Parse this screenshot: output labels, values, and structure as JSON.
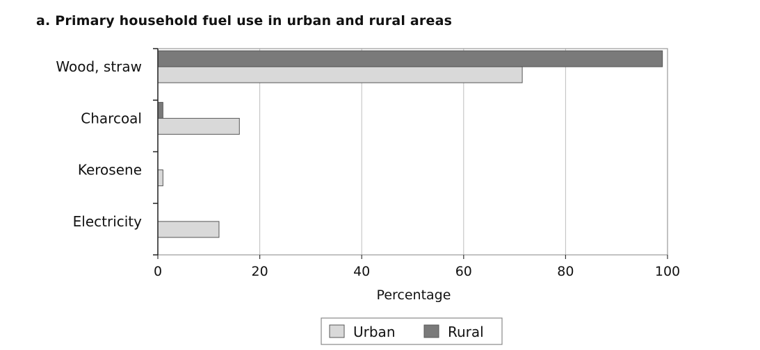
{
  "chart_data": {
    "type": "bar",
    "orientation": "horizontal",
    "title": "a. Primary household fuel use in urban and rural areas",
    "xlabel": "Percentage",
    "ylabel": "",
    "xlim": [
      0,
      100
    ],
    "xticks": [
      0,
      20,
      40,
      60,
      80,
      100
    ],
    "grid": "vertical",
    "legend_position": "bottom",
    "categories": [
      "Wood, straw",
      "Charcoal",
      "Kerosene",
      "Electricity"
    ],
    "series": [
      {
        "name": "Rural",
        "color": "#7a7a7a",
        "values": [
          99,
          1,
          0,
          0
        ]
      },
      {
        "name": "Urban",
        "color": "#d9d9d9",
        "values": [
          71.5,
          16,
          1,
          12
        ]
      }
    ],
    "legend": [
      "Urban",
      "Rural"
    ]
  }
}
